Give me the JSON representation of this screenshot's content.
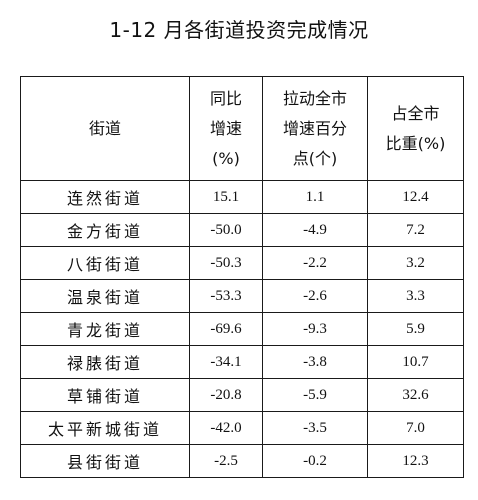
{
  "title": "1-12 月各街道投资完成情况",
  "table": {
    "headers": [
      {
        "lines": [
          "街道"
        ]
      },
      {
        "lines": [
          "同比",
          "增速",
          "(%)"
        ]
      },
      {
        "lines": [
          "拉动全市",
          "增速百分",
          "点(个)"
        ]
      },
      {
        "lines": [
          "占全市",
          "比重(%)"
        ]
      }
    ],
    "rows": [
      {
        "name": "连然街道",
        "growth": "15.1",
        "contribution": "1.1",
        "share": "12.4"
      },
      {
        "name": "金方街道",
        "growth": "-50.0",
        "contribution": "-4.9",
        "share": "7.2"
      },
      {
        "name": "八街街道",
        "growth": "-50.3",
        "contribution": "-2.2",
        "share": "3.2"
      },
      {
        "name": "温泉街道",
        "growth": "-53.3",
        "contribution": "-2.6",
        "share": "3.3"
      },
      {
        "name": "青龙街道",
        "growth": "-69.6",
        "contribution": "-9.3",
        "share": "5.9"
      },
      {
        "name": "禄脿街道",
        "growth": "-34.1",
        "contribution": "-3.8",
        "share": "10.7"
      },
      {
        "name": "草铺街道",
        "growth": "-20.8",
        "contribution": "-5.9",
        "share": "32.6"
      },
      {
        "name": "太平新城街道",
        "growth": "-42.0",
        "contribution": "-3.5",
        "share": "7.0"
      },
      {
        "name": "县街街道",
        "growth": "-2.5",
        "contribution": "-0.2",
        "share": "12.3"
      }
    ]
  }
}
